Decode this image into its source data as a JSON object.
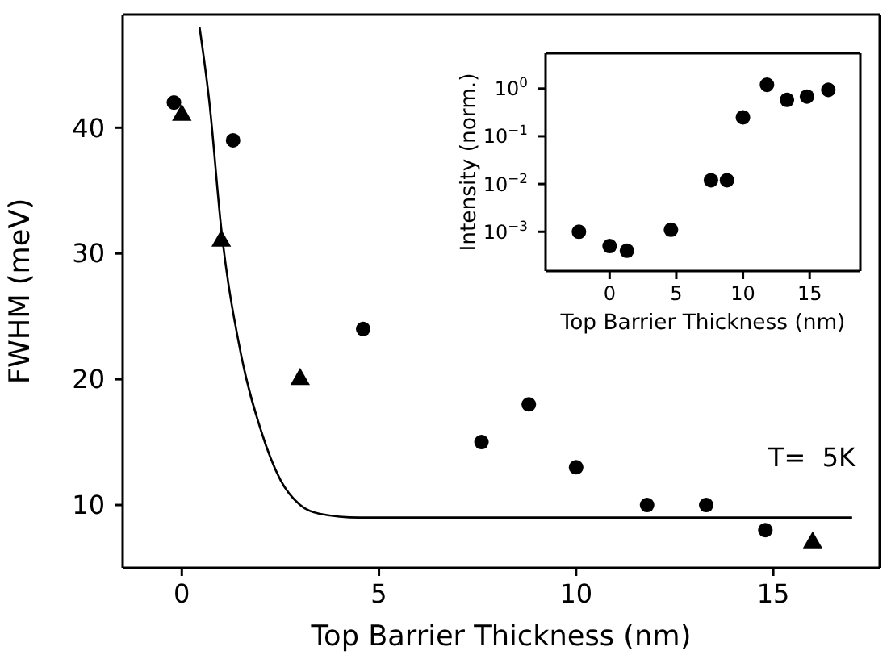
{
  "chart_data": [
    {
      "type": "scatter",
      "xlabel": "Top Barrier Thickness (nm)",
      "ylabel": "FWHM (meV)",
      "xlim": [
        -1.5,
        17.7
      ],
      "ylim": [
        5,
        49
      ],
      "xticks": [
        0,
        5,
        10,
        15
      ],
      "yticks": [
        10,
        20,
        30,
        40
      ],
      "grid": false,
      "annotations": [
        "T=  5K"
      ],
      "series": [
        {
          "marker": "circle",
          "color": "#000000",
          "x": [
            -0.2,
            1.3,
            4.6,
            7.6,
            8.8,
            10,
            11.8,
            13.3,
            14.8
          ],
          "values": [
            42,
            39,
            24,
            15,
            18,
            13,
            10,
            10,
            8
          ]
        },
        {
          "marker": "triangle",
          "color": "#000000",
          "x": [
            0,
            1,
            3,
            16
          ],
          "values": [
            41,
            31,
            20,
            7
          ]
        },
        {
          "type": "line",
          "marker": "none",
          "color": "#000000",
          "x": [
            0.45,
            0.7,
            1,
            1.5,
            2,
            2.5,
            3,
            3.5,
            4.5,
            17
          ],
          "values": [
            48,
            42,
            32,
            22,
            16,
            12,
            10,
            9.3,
            9,
            9
          ]
        }
      ]
    },
    {
      "type": "scatter",
      "log": "y",
      "xlabel": "Top Barrier Thickness (nm)",
      "ylabel": "Intensity (norm.)",
      "xlim": [
        -4.8,
        18.8
      ],
      "ylim": [
        0.00015,
        5.5
      ],
      "xticks": [
        0,
        5,
        10,
        15
      ],
      "yticks": [
        {
          "value": 0.001,
          "label": "10$^{−3}$"
        },
        {
          "value": 0.01,
          "label": "10$^{−2}$"
        },
        {
          "value": 0.1,
          "label": "10$^{−1}$"
        },
        {
          "value": 1,
          "label": "10$^{0}$"
        }
      ],
      "grid": false,
      "series": [
        {
          "marker": "circle",
          "color": "#000000",
          "x": [
            -2.3,
            0,
            1.3,
            4.6,
            7.6,
            8.8,
            10,
            11.8,
            13.3,
            14.8,
            16.4
          ],
          "values": [
            0.001,
            0.0005,
            0.0004,
            0.0011,
            0.012,
            0.012,
            0.25,
            1.2,
            0.58,
            0.68,
            0.94
          ]
        }
      ]
    }
  ]
}
